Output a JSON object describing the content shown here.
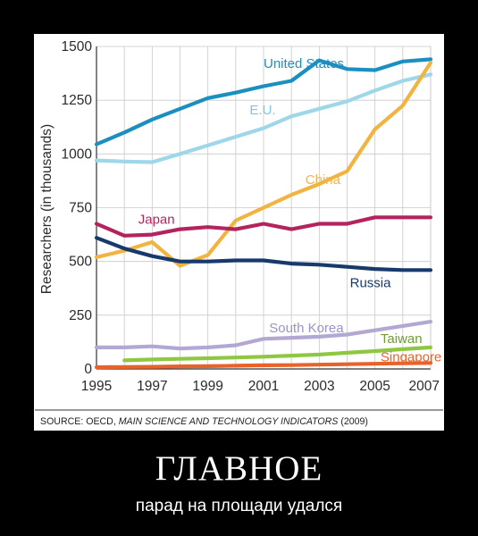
{
  "poster": {
    "title": "ГЛАВНОЕ",
    "subtitle": "парад на площади удался"
  },
  "chart_data": {
    "type": "line",
    "ylabel": "Researchers (in thousands)",
    "xlim": [
      1995,
      2007
    ],
    "ylim": [
      0,
      1500
    ],
    "x_ticks": [
      "1995",
      "1997",
      "1999",
      "2001",
      "2003",
      "2005",
      "2007"
    ],
    "y_ticks": [
      "0",
      "250",
      "500",
      "750",
      "1000",
      "1250",
      "1500"
    ],
    "grid": true,
    "source": "SOURCE: OECD, MAIN SCIENCE AND TECHNOLOGY INDICATORS (2009)",
    "source_prefix": "SOURCE: OECD, ",
    "source_title": "MAIN SCIENCE AND TECHNOLOGY INDICATORS",
    "source_suffix": " (2009)",
    "series": [
      {
        "name": "United States",
        "color": "#1a8fc0",
        "x": [
          1995,
          1996,
          1997,
          1998,
          1999,
          2000,
          2001,
          2002,
          2003,
          2004,
          2005,
          2006,
          2007
        ],
        "y": [
          1045,
          1100,
          1160,
          1210,
          1260,
          1285,
          1315,
          1340,
          1435,
          1395,
          1390,
          1430,
          1440
        ]
      },
      {
        "name": "E.U.",
        "color": "#9ed6ea",
        "x": [
          1995,
          1996,
          1997,
          1998,
          1999,
          2000,
          2001,
          2002,
          2003,
          2004,
          2005,
          2006,
          2007
        ],
        "y": [
          970,
          965,
          962,
          1000,
          1040,
          1080,
          1120,
          1175,
          1210,
          1245,
          1295,
          1340,
          1370
        ]
      },
      {
        "name": "China",
        "color": "#f2b441",
        "x": [
          1995,
          1996,
          1997,
          1998,
          1999,
          2000,
          2001,
          2002,
          2003,
          2004,
          2005,
          2006,
          2007
        ],
        "y": [
          520,
          550,
          590,
          480,
          530,
          690,
          750,
          810,
          860,
          920,
          1115,
          1225,
          1425
        ]
      },
      {
        "name": "Japan",
        "color": "#b3245e",
        "x": [
          1995,
          1996,
          1997,
          1998,
          1999,
          2000,
          2001,
          2002,
          2003,
          2004,
          2005,
          2006,
          2007
        ],
        "y": [
          675,
          620,
          625,
          650,
          660,
          650,
          675,
          650,
          675,
          675,
          705,
          705,
          705
        ]
      },
      {
        "name": "Russia",
        "color": "#17396b",
        "x": [
          1995,
          1996,
          1997,
          1998,
          1999,
          2000,
          2001,
          2002,
          2003,
          2004,
          2005,
          2006,
          2007
        ],
        "y": [
          610,
          560,
          525,
          500,
          500,
          505,
          505,
          490,
          485,
          475,
          465,
          460,
          460
        ]
      },
      {
        "name": "South Korea",
        "color": "#b2a8d3",
        "x": [
          1995,
          1996,
          1997,
          1998,
          1999,
          2000,
          2001,
          2002,
          2003,
          2004,
          2005,
          2006,
          2007
        ],
        "y": [
          100,
          100,
          105,
          95,
          100,
          110,
          140,
          145,
          150,
          160,
          180,
          200,
          220
        ]
      },
      {
        "name": "Taiwan",
        "color": "#8fc743",
        "x": [
          1996,
          1997,
          1998,
          1999,
          2000,
          2001,
          2002,
          2003,
          2004,
          2005,
          2006,
          2007
        ],
        "y": [
          40,
          44,
          47,
          50,
          53,
          57,
          62,
          67,
          75,
          83,
          92,
          100
        ]
      },
      {
        "name": "Singapore",
        "color": "#e8622a",
        "x": [
          1995,
          1996,
          1997,
          1998,
          1999,
          2000,
          2001,
          2002,
          2003,
          2004,
          2005,
          2006,
          2007
        ],
        "y": [
          8,
          9,
          10,
          12,
          13,
          15,
          17,
          18,
          20,
          22,
          24,
          26,
          28
        ]
      }
    ],
    "annotations": [
      {
        "series": "United States",
        "text": "United States",
        "x": 2001.0,
        "y": 1400,
        "color": "#1a8fc0"
      },
      {
        "series": "E.U.",
        "text": "E.U.",
        "x": 2000.5,
        "y": 1185,
        "color": "#7ec7e3"
      },
      {
        "series": "China",
        "text": "China",
        "x": 2002.5,
        "y": 860,
        "color": "#f2b441"
      },
      {
        "series": "Japan",
        "text": "Japan",
        "x": 1996.5,
        "y": 675,
        "color": "#b3245e"
      },
      {
        "series": "Russia",
        "text": "Russia",
        "x": 2004.1,
        "y": 380,
        "color": "#17396b"
      },
      {
        "series": "South Korea",
        "text": "South Korea",
        "x": 2001.2,
        "y": 170,
        "color": "#9d93c7"
      },
      {
        "series": "Taiwan",
        "text": "Taiwan",
        "x": 2005.2,
        "y": 120,
        "color": "#6e9f2f"
      },
      {
        "series": "Singapore",
        "text": "Singapore",
        "x": 2005.2,
        "y": 35,
        "color": "#e8622a"
      }
    ]
  }
}
